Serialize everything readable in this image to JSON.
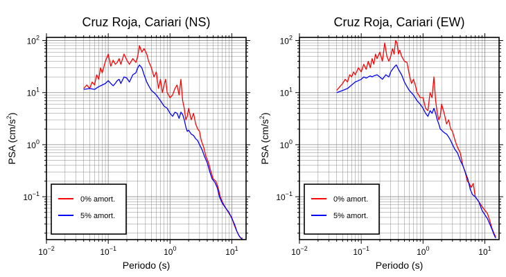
{
  "colors": {
    "undamped": "#ff0000",
    "damped": "#0000ff",
    "grid": "#888888",
    "frame": "#000000"
  },
  "x_ticks": [
    {
      "base": "10",
      "exp": "−2",
      "v": 0.01
    },
    {
      "base": "10",
      "exp": "−1",
      "v": 0.1
    },
    {
      "base": "10",
      "exp": "0",
      "v": 1
    },
    {
      "base": "10",
      "exp": "1",
      "v": 10
    }
  ],
  "y_ticks": [
    {
      "base": "10",
      "exp": "−1",
      "v": 0.1
    },
    {
      "base": "10",
      "exp": "0",
      "v": 1
    },
    {
      "base": "10",
      "exp": "1",
      "v": 10
    },
    {
      "base": "10",
      "exp": "2",
      "v": 100
    }
  ],
  "chart_data": [
    {
      "type": "line",
      "title": "Cruz Roja, Cariari (NS)",
      "xlabel": "Periodo (s)",
      "ylabel_main": "PSA (cm/s",
      "ylabel_sup": "2",
      "ylabel_tail": ")",
      "xscale": "log",
      "yscale": "log",
      "xlim": [
        0.01,
        17
      ],
      "ylim": [
        0.015,
        115
      ],
      "grid": true,
      "legend_position": "bottom-left",
      "series": [
        {
          "name": "0% amort.",
          "color": "#ff0000",
          "points": [
            [
              0.04,
              12
            ],
            [
              0.045,
              14
            ],
            [
              0.05,
              12
            ],
            [
              0.055,
              16
            ],
            [
              0.06,
              14
            ],
            [
              0.065,
              22
            ],
            [
              0.07,
              18
            ],
            [
              0.075,
              30
            ],
            [
              0.08,
              24
            ],
            [
              0.09,
              40
            ],
            [
              0.1,
              55
            ],
            [
              0.11,
              32
            ],
            [
              0.12,
              42
            ],
            [
              0.13,
              35
            ],
            [
              0.14,
              38
            ],
            [
              0.15,
              45
            ],
            [
              0.16,
              35
            ],
            [
              0.18,
              55
            ],
            [
              0.2,
              42
            ],
            [
              0.22,
              35
            ],
            [
              0.25,
              45
            ],
            [
              0.28,
              38
            ],
            [
              0.3,
              50
            ],
            [
              0.32,
              80
            ],
            [
              0.35,
              60
            ],
            [
              0.38,
              70
            ],
            [
              0.42,
              55
            ],
            [
              0.45,
              40
            ],
            [
              0.5,
              30
            ],
            [
              0.55,
              20
            ],
            [
              0.6,
              25
            ],
            [
              0.65,
              12
            ],
            [
              0.7,
              18
            ],
            [
              0.75,
              10
            ],
            [
              0.8,
              14
            ],
            [
              0.85,
              18
            ],
            [
              0.9,
              10
            ],
            [
              1.0,
              8
            ],
            [
              1.1,
              9
            ],
            [
              1.2,
              12
            ],
            [
              1.3,
              14
            ],
            [
              1.4,
              9
            ],
            [
              1.5,
              18
            ],
            [
              1.6,
              7
            ],
            [
              1.7,
              5
            ],
            [
              1.8,
              3
            ],
            [
              1.9,
              3.5
            ],
            [
              2.0,
              5
            ],
            [
              2.2,
              3
            ],
            [
              2.4,
              4
            ],
            [
              2.6,
              2.5
            ],
            [
              2.8,
              2
            ],
            [
              3.0,
              1.8
            ],
            [
              3.2,
              1.2
            ],
            [
              3.5,
              0.9
            ],
            [
              3.8,
              0.6
            ],
            [
              4.2,
              0.45
            ],
            [
              4.6,
              0.3
            ],
            [
              5.0,
              0.22
            ],
            [
              5.5,
              0.2
            ],
            [
              6.0,
              0.15
            ],
            [
              6.5,
              0.1
            ],
            [
              7.0,
              0.08
            ],
            [
              8.0,
              0.06
            ],
            [
              9.0,
              0.048
            ],
            [
              10.0,
              0.04
            ],
            [
              11.0,
              0.028
            ],
            [
              12.0,
              0.022
            ],
            [
              13.0,
              0.018
            ],
            [
              14.0,
              0.016
            ],
            [
              15.0,
              0.016
            ]
          ]
        },
        {
          "name": "5% amort.",
          "color": "#0000ff",
          "points": [
            [
              0.04,
              11.5
            ],
            [
              0.05,
              12
            ],
            [
              0.06,
              11.5
            ],
            [
              0.07,
              13
            ],
            [
              0.08,
              14
            ],
            [
              0.09,
              15
            ],
            [
              0.1,
              17
            ],
            [
              0.11,
              15
            ],
            [
              0.12,
              13.5
            ],
            [
              0.13,
              15
            ],
            [
              0.14,
              17
            ],
            [
              0.15,
              18
            ],
            [
              0.16,
              15
            ],
            [
              0.18,
              20
            ],
            [
              0.2,
              19
            ],
            [
              0.22,
              16
            ],
            [
              0.25,
              22
            ],
            [
              0.28,
              24
            ],
            [
              0.3,
              30
            ],
            [
              0.32,
              34
            ],
            [
              0.35,
              30
            ],
            [
              0.38,
              22
            ],
            [
              0.42,
              16
            ],
            [
              0.46,
              13
            ],
            [
              0.5,
              11
            ],
            [
              0.55,
              10
            ],
            [
              0.6,
              9
            ],
            [
              0.7,
              7
            ],
            [
              0.8,
              5.5
            ],
            [
              0.9,
              5
            ],
            [
              1.0,
              4
            ],
            [
              1.1,
              3.5
            ],
            [
              1.2,
              4.2
            ],
            [
              1.3,
              4
            ],
            [
              1.4,
              3.2
            ],
            [
              1.5,
              4.2
            ],
            [
              1.6,
              3.8
            ],
            [
              1.7,
              3
            ],
            [
              1.8,
              2.2
            ],
            [
              1.9,
              1.8
            ],
            [
              2.0,
              1.9
            ],
            [
              2.2,
              1.6
            ],
            [
              2.4,
              1.5
            ],
            [
              2.6,
              1.3
            ],
            [
              2.8,
              1.2
            ],
            [
              3.0,
              1
            ],
            [
              3.3,
              0.8
            ],
            [
              3.6,
              0.6
            ],
            [
              4.0,
              0.45
            ],
            [
              4.4,
              0.3
            ],
            [
              4.8,
              0.22
            ],
            [
              5.3,
              0.19
            ],
            [
              5.8,
              0.15
            ],
            [
              6.3,
              0.1
            ],
            [
              7.0,
              0.075
            ],
            [
              8.0,
              0.06
            ],
            [
              9.0,
              0.05
            ],
            [
              10.0,
              0.038
            ],
            [
              11.0,
              0.03
            ],
            [
              12.0,
              0.022
            ],
            [
              13.0,
              0.018
            ],
            [
              14.0,
              0.016
            ],
            [
              15.0,
              0.015
            ]
          ]
        }
      ]
    },
    {
      "type": "line",
      "title": "Cruz Roja, Cariari (EW)",
      "xlabel": "Periodo (s)",
      "ylabel_main": "PSA (cm/s",
      "ylabel_sup": "2",
      "ylabel_tail": ")",
      "xscale": "log",
      "yscale": "log",
      "xlim": [
        0.01,
        17
      ],
      "ylim": [
        0.015,
        115
      ],
      "grid": true,
      "legend_position": "bottom-left",
      "series": [
        {
          "name": "0% amort.",
          "color": "#ff0000",
          "points": [
            [
              0.04,
              11
            ],
            [
              0.045,
              13
            ],
            [
              0.05,
              15
            ],
            [
              0.055,
              18
            ],
            [
              0.06,
              16
            ],
            [
              0.065,
              22
            ],
            [
              0.07,
              20
            ],
            [
              0.075,
              25
            ],
            [
              0.08,
              22
            ],
            [
              0.09,
              30
            ],
            [
              0.1,
              25
            ],
            [
              0.11,
              35
            ],
            [
              0.12,
              28
            ],
            [
              0.13,
              40
            ],
            [
              0.14,
              30
            ],
            [
              0.15,
              45
            ],
            [
              0.16,
              35
            ],
            [
              0.17,
              55
            ],
            [
              0.18,
              45
            ],
            [
              0.2,
              60
            ],
            [
              0.22,
              40
            ],
            [
              0.24,
              90
            ],
            [
              0.26,
              50
            ],
            [
              0.28,
              40
            ],
            [
              0.3,
              50
            ],
            [
              0.32,
              70
            ],
            [
              0.34,
              55
            ],
            [
              0.36,
              100
            ],
            [
              0.38,
              90
            ],
            [
              0.4,
              55
            ],
            [
              0.42,
              65
            ],
            [
              0.45,
              50
            ],
            [
              0.5,
              40
            ],
            [
              0.55,
              38
            ],
            [
              0.6,
              22
            ],
            [
              0.65,
              15
            ],
            [
              0.7,
              18
            ],
            [
              0.75,
              14
            ],
            [
              0.8,
              10
            ],
            [
              0.85,
              9
            ],
            [
              0.9,
              8
            ],
            [
              1.0,
              8
            ],
            [
              1.1,
              5
            ],
            [
              1.2,
              4.5
            ],
            [
              1.3,
              10
            ],
            [
              1.4,
              8
            ],
            [
              1.5,
              20
            ],
            [
              1.6,
              7
            ],
            [
              1.7,
              4
            ],
            [
              1.8,
              3
            ],
            [
              1.9,
              3.5
            ],
            [
              2.0,
              6
            ],
            [
              2.2,
              4
            ],
            [
              2.4,
              2.5
            ],
            [
              2.6,
              3
            ],
            [
              2.8,
              2
            ],
            [
              3.0,
              1.8
            ],
            [
              3.3,
              1.2
            ],
            [
              3.6,
              0.9
            ],
            [
              4.0,
              0.7
            ],
            [
              4.4,
              0.4
            ],
            [
              4.8,
              0.3
            ],
            [
              5.2,
              0.2
            ],
            [
              5.6,
              0.18
            ],
            [
              6.0,
              0.15
            ],
            [
              6.5,
              0.18
            ],
            [
              7.0,
              0.1
            ],
            [
              8.0,
              0.08
            ],
            [
              9.0,
              0.065
            ],
            [
              10.0,
              0.055
            ],
            [
              11.0,
              0.048
            ],
            [
              12.0,
              0.035
            ],
            [
              13.0,
              0.025
            ],
            [
              14.0,
              0.02
            ],
            [
              15.0,
              0.017
            ]
          ]
        },
        {
          "name": "5% amort.",
          "color": "#0000ff",
          "points": [
            [
              0.04,
              10
            ],
            [
              0.05,
              11
            ],
            [
              0.06,
              12
            ],
            [
              0.07,
              14
            ],
            [
              0.08,
              16
            ],
            [
              0.09,
              17
            ],
            [
              0.1,
              18
            ],
            [
              0.11,
              20
            ],
            [
              0.12,
              19
            ],
            [
              0.13,
              20
            ],
            [
              0.14,
              21
            ],
            [
              0.15,
              20
            ],
            [
              0.16,
              21
            ],
            [
              0.18,
              22
            ],
            [
              0.2,
              20
            ],
            [
              0.22,
              18
            ],
            [
              0.25,
              22
            ],
            [
              0.28,
              20
            ],
            [
              0.3,
              25
            ],
            [
              0.32,
              28
            ],
            [
              0.35,
              32
            ],
            [
              0.37,
              34
            ],
            [
              0.4,
              28
            ],
            [
              0.45,
              22
            ],
            [
              0.5,
              16
            ],
            [
              0.55,
              13
            ],
            [
              0.6,
              11
            ],
            [
              0.7,
              9
            ],
            [
              0.8,
              7
            ],
            [
              0.9,
              6
            ],
            [
              1.0,
              5
            ],
            [
              1.1,
              4
            ],
            [
              1.2,
              3.5
            ],
            [
              1.3,
              4.5
            ],
            [
              1.4,
              4
            ],
            [
              1.5,
              5
            ],
            [
              1.6,
              4
            ],
            [
              1.7,
              3
            ],
            [
              1.8,
              2.5
            ],
            [
              1.9,
              2
            ],
            [
              2.0,
              1.9
            ],
            [
              2.2,
              1.7
            ],
            [
              2.4,
              1.6
            ],
            [
              2.6,
              1.4
            ],
            [
              2.8,
              1.2
            ],
            [
              3.0,
              1
            ],
            [
              3.3,
              0.8
            ],
            [
              3.6,
              0.7
            ],
            [
              4.0,
              0.5
            ],
            [
              4.4,
              0.4
            ],
            [
              4.8,
              0.3
            ],
            [
              5.3,
              0.22
            ],
            [
              5.8,
              0.14
            ],
            [
              6.3,
              0.11
            ],
            [
              7.0,
              0.1
            ],
            [
              8.0,
              0.08
            ],
            [
              9.0,
              0.055
            ],
            [
              10.0,
              0.045
            ],
            [
              11.0,
              0.038
            ],
            [
              12.0,
              0.03
            ],
            [
              13.0,
              0.024
            ],
            [
              14.0,
              0.019
            ],
            [
              15.0,
              0.016
            ]
          ]
        }
      ]
    }
  ]
}
